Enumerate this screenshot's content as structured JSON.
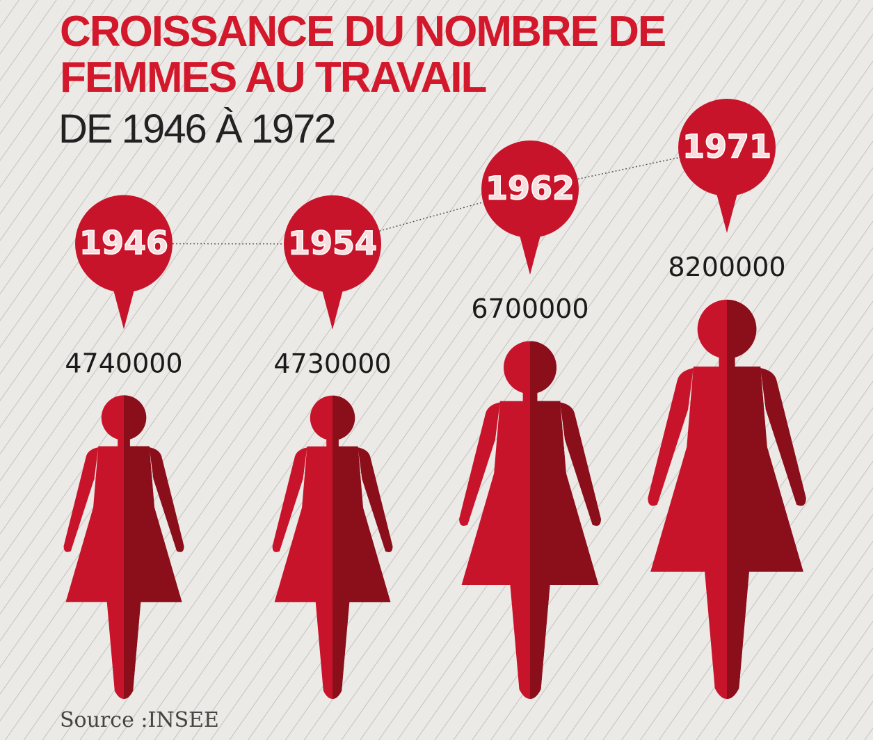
{
  "chart_data": {
    "type": "pictograph",
    "title": "CROISSANCE DU NOMBRE DE FEMMES AU TRAVAIL",
    "subtitle": "DE 1946 À 1972",
    "source": "Source :INSEE",
    "categories": [
      "1946",
      "1954",
      "1962",
      "1971"
    ],
    "values": [
      4740000,
      4730000,
      6700000,
      8200000
    ],
    "color": "#c8142a",
    "shade_color": "#8a0f1b"
  }
}
